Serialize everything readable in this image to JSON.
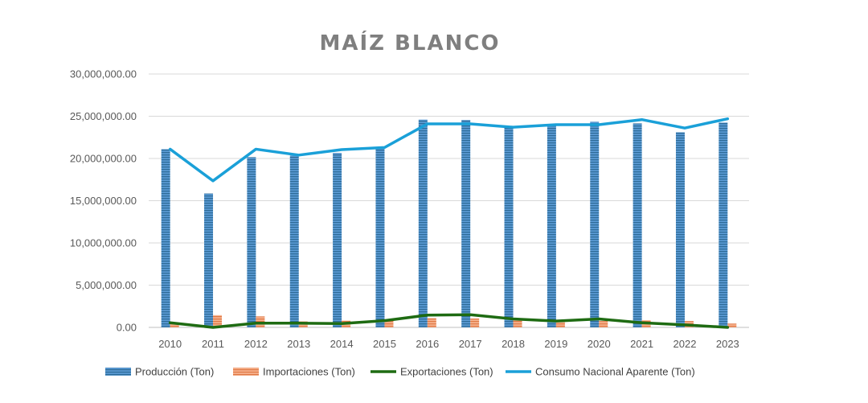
{
  "chart_data": {
    "type": "bar",
    "title": "MAÍZ BLANCO",
    "categories": [
      "2010",
      "2011",
      "2012",
      "2013",
      "2014",
      "2015",
      "2016",
      "2017",
      "2018",
      "2019",
      "2020",
      "2021",
      "2022",
      "2023"
    ],
    "ylim": [
      0,
      30000000
    ],
    "yticks": [
      0,
      5000000,
      10000000,
      15000000,
      20000000,
      25000000,
      30000000
    ],
    "ytick_labels": [
      "0.00",
      "5,000,000.00",
      "10,000,000.00",
      "15,000,000.00",
      "20,000,000.00",
      "25,000,000.00",
      "30,000,000.00"
    ],
    "grid": true,
    "legend_position": "bottom",
    "series": [
      {
        "name": "Producción (Ton)",
        "kind": "bar",
        "color": "#4a8cb9",
        "values": [
          21100000,
          15850000,
          20150000,
          20350000,
          20650000,
          21300000,
          24600000,
          24550000,
          23650000,
          23950000,
          24350000,
          24150000,
          23100000,
          24250000
        ]
      },
      {
        "name": "Importaciones (Ton)",
        "kind": "bar",
        "color": "#f0a07a",
        "values": [
          500000,
          1450000,
          1300000,
          700000,
          800000,
          800000,
          1100000,
          1050000,
          900000,
          750000,
          750000,
          850000,
          750000,
          450000
        ]
      },
      {
        "name": "Exportaciones  (Ton)",
        "kind": "line",
        "color": "#1e6b12",
        "values": [
          550000,
          0,
          500000,
          500000,
          450000,
          800000,
          1450000,
          1500000,
          1000000,
          750000,
          1000000,
          550000,
          300000,
          0
        ]
      },
      {
        "name": "Consumo Nacional Aparente (Ton)",
        "kind": "line",
        "color": "#1aa0d8",
        "values": [
          21100000,
          17350000,
          21100000,
          20400000,
          21050000,
          21300000,
          24100000,
          24100000,
          23700000,
          24000000,
          24000000,
          24600000,
          23600000,
          24700000
        ]
      }
    ]
  }
}
